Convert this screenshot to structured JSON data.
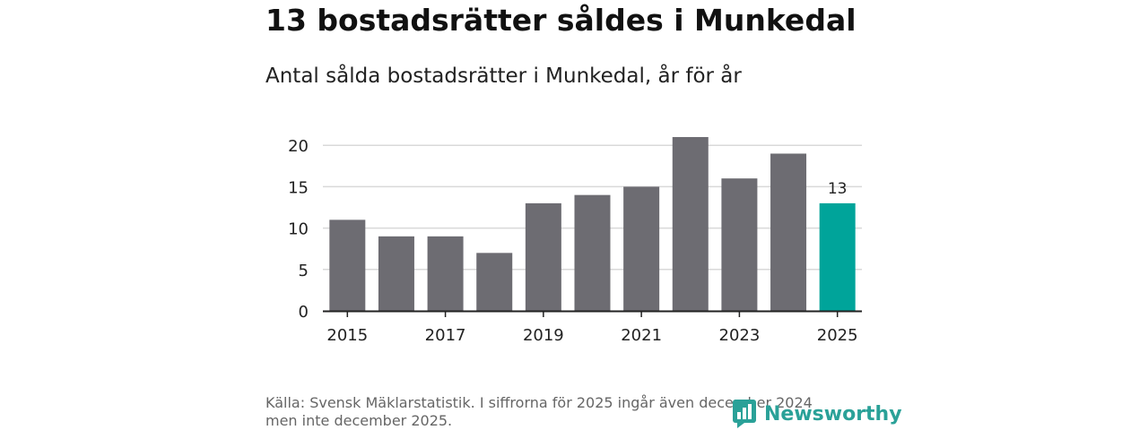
{
  "title": "13 bostadsrätter såldes i Munkedal",
  "subtitle": "Antal sålda bostadsrätter i Munkedal, år för år",
  "source": {
    "line1": "Källa: Svensk Mäklarstatistik. I siffrorna för 2025 ingår även december 2024",
    "line2": "men inte december 2025."
  },
  "brand": {
    "name": "Newsworthy",
    "icon": "newsworthy-logo-icon",
    "color": "#2aa198"
  },
  "colors": {
    "bar": "#6d6c72",
    "highlight": "#00a49a",
    "grid": "#d9d9d9",
    "axis": "#222222"
  },
  "chart_data": {
    "type": "bar",
    "title": "Antal sålda bostadsrätter i Munkedal, år för år",
    "categories": [
      "2015",
      "2016",
      "2017",
      "2018",
      "2019",
      "2020",
      "2021",
      "2022",
      "2023",
      "2024",
      "2025"
    ],
    "values": [
      11,
      9,
      9,
      7,
      13,
      14,
      15,
      21,
      16,
      19,
      13
    ],
    "xtick_labels": [
      "2015",
      "2017",
      "2019",
      "2021",
      "2023",
      "2025"
    ],
    "yticks": [
      0,
      5,
      10,
      15,
      20
    ],
    "ylim": [
      0,
      21
    ],
    "highlight_category": "2025",
    "data_labels": [
      {
        "category": "2025",
        "text": "13"
      }
    ],
    "xlabel": "",
    "ylabel": "",
    "grid": true,
    "legend": "none"
  }
}
